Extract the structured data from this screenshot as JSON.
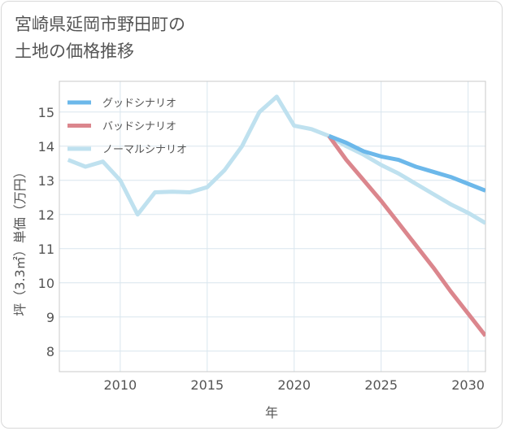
{
  "title_lines": [
    "宮崎県延岡市野田町の",
    "土地の価格推移"
  ],
  "chart_data": {
    "type": "line",
    "xlabel": "年",
    "ylabel": "坪（3.3㎡）単価（万円）",
    "xlim": [
      2006.5,
      2031
    ],
    "ylim": [
      7.4,
      15.9
    ],
    "xticks": [
      2010,
      2015,
      2020,
      2025,
      2030
    ],
    "yticks": [
      8,
      9,
      10,
      11,
      12,
      13,
      14,
      15
    ],
    "grid": true,
    "legend_position": "top-left",
    "series": [
      {
        "name": "グッドシナリオ",
        "color": "#6cb8ea",
        "x": [
          2022,
          2023,
          2024,
          2025,
          2026,
          2027,
          2028,
          2029,
          2030,
          2031
        ],
        "y": [
          14.3,
          14.1,
          13.85,
          13.7,
          13.6,
          13.4,
          13.25,
          13.1,
          12.9,
          12.7
        ]
      },
      {
        "name": "バッドシナリオ",
        "color": "#db868d",
        "x": [
          2022,
          2023,
          2024,
          2025,
          2026,
          2027,
          2028,
          2029,
          2030,
          2031
        ],
        "y": [
          14.3,
          13.6,
          13.0,
          12.4,
          11.75,
          11.1,
          10.45,
          9.75,
          9.1,
          8.45
        ]
      },
      {
        "name": "ノーマルシナリオ",
        "color": "#bfe1ef",
        "x": [
          2007,
          2008,
          2009,
          2010,
          2011,
          2012,
          2013,
          2014,
          2015,
          2016,
          2017,
          2018,
          2019,
          2020,
          2021,
          2022,
          2023,
          2024,
          2025,
          2026,
          2027,
          2028,
          2029,
          2030,
          2031
        ],
        "y": [
          13.6,
          13.4,
          13.55,
          13.0,
          12.0,
          12.65,
          12.67,
          12.65,
          12.8,
          13.3,
          14.0,
          15.0,
          15.45,
          14.6,
          14.5,
          14.3,
          14.0,
          13.75,
          13.45,
          13.2,
          12.9,
          12.6,
          12.3,
          12.05,
          11.75
        ]
      }
    ]
  }
}
